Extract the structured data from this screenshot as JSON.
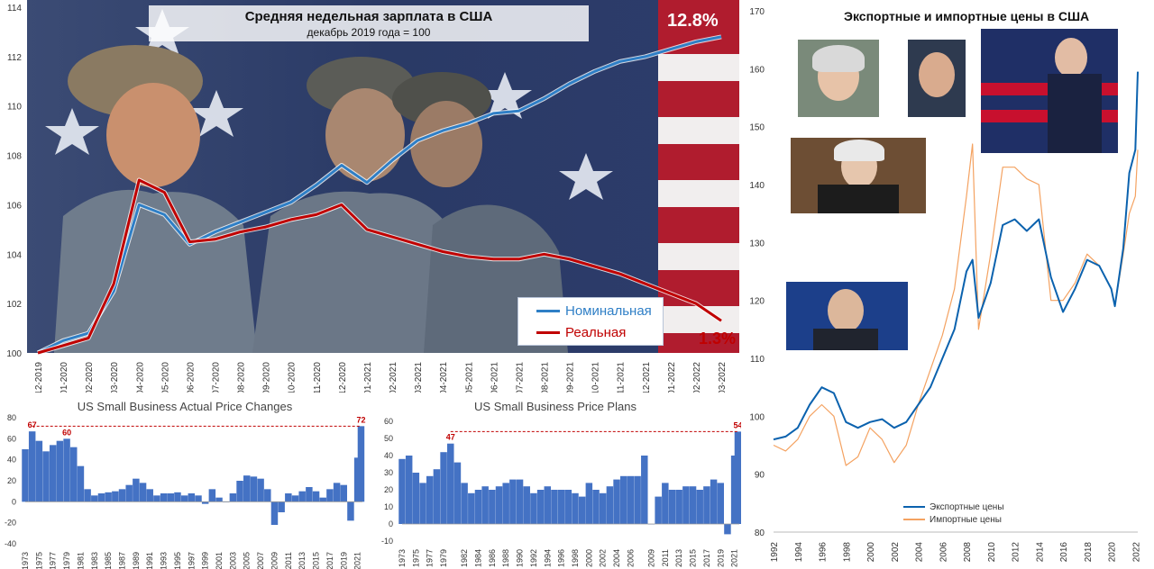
{
  "colors": {
    "nominal": "#2f7fc6",
    "real": "#c00000",
    "export_line": "#0b62ae",
    "import_line": "#f4a261",
    "bars": "#4472c4",
    "annotation": "#c00000",
    "photo_bg": "#2b3a63"
  },
  "icons": {
    "wages_background": "miners-and-flag-photo",
    "exim_photos": [
      "yellen-photo",
      "powell-photo",
      "biden-photo",
      "lagarde-photo",
      "scholz-photo"
    ]
  },
  "charts": {
    "wages": {
      "title": "Средняя недельная зарплата в США",
      "subtitle": "декабрь 2019 года = 100",
      "end_label_nominal": "12.8%",
      "end_label_real": "1.3%",
      "legend": [
        "Номинальная",
        "Реальная"
      ]
    },
    "exim": {
      "title": "Экспортные и импортные цены в США",
      "legend": [
        "Экспортные цены",
        "Импортные цены"
      ]
    },
    "actual": {
      "title": "US Small Business Actual Price Changes",
      "annotations": [
        "67",
        "60",
        "72"
      ]
    },
    "plans": {
      "title": "US Small Business Price Plans",
      "annotations": [
        "47",
        "54"
      ]
    }
  },
  "chart_data": [
    {
      "type": "line",
      "title": "Средняя недельная зарплата в США",
      "subtitle": "декабрь 2019 года = 100",
      "categories": [
        "12-2019",
        "01-2020",
        "02-2020",
        "03-2020",
        "04-2020",
        "05-2020",
        "06-2020",
        "07-2020",
        "08-2020",
        "09-2020",
        "10-2020",
        "11-2020",
        "12-2020",
        "01-2021",
        "02-2021",
        "03-2021",
        "04-2021",
        "05-2021",
        "06-2021",
        "07-2021",
        "08-2021",
        "09-2021",
        "10-2021",
        "11-2021",
        "12-2021",
        "01-2022",
        "02-2022",
        "03-2022"
      ],
      "series": [
        {
          "name": "Номинальная",
          "values": [
            100.0,
            100.5,
            100.8,
            102.5,
            106.0,
            105.6,
            104.4,
            104.9,
            105.3,
            105.7,
            106.1,
            106.8,
            107.6,
            106.9,
            107.8,
            108.6,
            109.0,
            109.3,
            109.7,
            109.8,
            110.3,
            110.9,
            111.4,
            111.8,
            112.0,
            112.3,
            112.6,
            112.8
          ]
        },
        {
          "name": "Реальная",
          "values": [
            100.0,
            100.3,
            100.6,
            102.8,
            107.0,
            106.5,
            104.5,
            104.6,
            104.9,
            105.1,
            105.4,
            105.6,
            106.0,
            105.0,
            104.7,
            104.4,
            104.1,
            103.9,
            103.8,
            103.8,
            104.0,
            103.8,
            103.5,
            103.2,
            102.8,
            102.4,
            102.0,
            101.3
          ]
        }
      ],
      "ylim": [
        100,
        114
      ],
      "yticks": [
        100,
        102,
        104,
        106,
        108,
        110,
        112,
        114
      ],
      "legend": [
        "Номинальная",
        "Реальная"
      ],
      "end_labels": {
        "Номинальная": "12.8%",
        "Реальная": "1.3%"
      }
    },
    {
      "type": "line",
      "title": "Экспортные и импортные цены в США",
      "x": [
        1992,
        1993,
        1994,
        1995,
        1996,
        1997,
        1998,
        1999,
        2000,
        2001,
        2002,
        2003,
        2004,
        2005,
        2006,
        2007,
        2008,
        2008.5,
        2009,
        2010,
        2011,
        2012,
        2013,
        2014,
        2015,
        2016,
        2017,
        2018,
        2019,
        2020,
        2020.3,
        2021,
        2021.5,
        2022,
        2022.2
      ],
      "series": [
        {
          "name": "Экспортные цены",
          "values": [
            96,
            96.5,
            98,
            102,
            105,
            104,
            99,
            98,
            99,
            99.5,
            98,
            99,
            102,
            105,
            110,
            115,
            125,
            127,
            117,
            123,
            133,
            134,
            132,
            134,
            124,
            118,
            122,
            127,
            126,
            122,
            119,
            129,
            142,
            146,
            159.5
          ]
        },
        {
          "name": "Импортные цены",
          "values": [
            95,
            94,
            96,
            100,
            102,
            100,
            91.5,
            93,
            98,
            96,
            92,
            95,
            102,
            108,
            114,
            122,
            138,
            147,
            115,
            128,
            143,
            143,
            141,
            140,
            120,
            120,
            123,
            128,
            126,
            122,
            119,
            128,
            135,
            138,
            146
          ]
        }
      ],
      "xticks": [
        1992,
        1994,
        1996,
        1998,
        2000,
        2002,
        2004,
        2006,
        2008,
        2010,
        2012,
        2014,
        2016,
        2018,
        2020,
        2022
      ],
      "ylim": [
        80,
        170
      ],
      "yticks": [
        80,
        90,
        100,
        110,
        120,
        130,
        140,
        150,
        160,
        170
      ],
      "legend": [
        "Экспортные цены",
        "Импортные цены"
      ]
    },
    {
      "type": "bar",
      "title": "US Small Business Actual Price Changes",
      "x": [
        1973,
        1974,
        1975,
        1976,
        1977,
        1978,
        1979,
        1980,
        1981,
        1982,
        1983,
        1984,
        1985,
        1986,
        1987,
        1988,
        1989,
        1990,
        1991,
        1992,
        1993,
        1994,
        1995,
        1996,
        1997,
        1998,
        1999,
        2000,
        2001,
        2002,
        2003,
        2004,
        2005,
        2006,
        2007,
        2008,
        2009,
        2010,
        2011,
        2012,
        2013,
        2014,
        2015,
        2016,
        2017,
        2018,
        2019,
        2020,
        2021,
        2021.5
      ],
      "values": [
        50,
        67,
        58,
        48,
        54,
        58,
        60,
        52,
        34,
        12,
        6,
        8,
        9,
        10,
        12,
        16,
        22,
        18,
        12,
        6,
        8,
        8,
        9,
        6,
        8,
        6,
        -2,
        12,
        4,
        0,
        8,
        20,
        25,
        24,
        22,
        12,
        -22,
        -10,
        8,
        6,
        10,
        14,
        10,
        4,
        12,
        18,
        16,
        -18,
        42,
        72
      ],
      "xticks": [
        1973,
        1975,
        1977,
        1979,
        1981,
        1983,
        1985,
        1987,
        1989,
        1991,
        1993,
        1995,
        1997,
        1999,
        2001,
        2003,
        2005,
        2007,
        2009,
        2011,
        2013,
        2015,
        2017,
        2019,
        2021
      ],
      "ylim": [
        -40,
        80
      ],
      "yticks": [
        -40,
        -20,
        0,
        20,
        40,
        60,
        80
      ],
      "annotations": [
        {
          "x": 1974,
          "y": 67,
          "text": "67"
        },
        {
          "x": 1979,
          "y": 60,
          "text": "60"
        },
        {
          "x": 2021.5,
          "y": 72,
          "text": "72"
        }
      ]
    },
    {
      "type": "bar",
      "title": "US Small Business Price Plans",
      "x": [
        1973,
        1974,
        1975,
        1976,
        1977,
        1978,
        1979,
        1980,
        1981,
        1982,
        1983,
        1984,
        1985,
        1986,
        1987,
        1988,
        1989,
        1990,
        1991,
        1992,
        1993,
        1994,
        1995,
        1996,
        1997,
        1998,
        1999,
        2000,
        2001,
        2002,
        2003,
        2004,
        2005,
        2006,
        2007,
        2008,
        2009,
        2010,
        2011,
        2012,
        2013,
        2014,
        2015,
        2016,
        2017,
        2018,
        2019,
        2020,
        2021,
        2021.5
      ],
      "values": [
        38,
        40,
        30,
        24,
        28,
        32,
        42,
        47,
        36,
        24,
        18,
        20,
        22,
        20,
        22,
        24,
        26,
        26,
        22,
        18,
        20,
        22,
        20,
        20,
        20,
        18,
        16,
        24,
        20,
        18,
        22,
        26,
        28,
        28,
        28,
        40,
        0,
        16,
        24,
        20,
        20,
        22,
        22,
        20,
        22,
        26,
        24,
        -6,
        40,
        54
      ],
      "xticks": [
        1973,
        1975,
        1977,
        1979,
        1982,
        1984,
        1986,
        1988,
        1990,
        1992,
        1994,
        1996,
        1998,
        2000,
        2002,
        2004,
        2006,
        2009,
        2011,
        2013,
        2015,
        2017,
        2019,
        2021
      ],
      "ylim": [
        -10,
        60
      ],
      "yticks": [
        -10,
        0,
        10,
        20,
        30,
        40,
        50,
        60
      ],
      "annotations": [
        {
          "x": 1980,
          "y": 47,
          "text": "47"
        },
        {
          "x": 2021.5,
          "y": 54,
          "text": "54"
        }
      ]
    }
  ]
}
